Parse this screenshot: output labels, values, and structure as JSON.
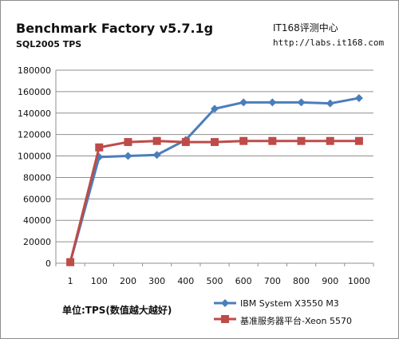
{
  "chart_data": {
    "type": "line",
    "title": "Benchmark Factory v5.7.1g",
    "subtitle": "SQL2005 TPS",
    "source_name": "IT168评测中心",
    "source_url": "http://labs.it168.com",
    "unit_label": "单位:TPS(数值越大越好)",
    "categories": [
      "1",
      "100",
      "200",
      "300",
      "400",
      "500",
      "600",
      "700",
      "800",
      "900",
      "1000"
    ],
    "ylim": [
      0,
      180000
    ],
    "yticks": [
      0,
      20000,
      40000,
      60000,
      80000,
      100000,
      120000,
      140000,
      160000,
      180000
    ],
    "grid": true,
    "legend_position": "bottom-right",
    "series": [
      {
        "name": "IBM System X3550 M3",
        "color": "#4a7ebb",
        "marker": "diamond",
        "values": [
          1000,
          99000,
          100000,
          101000,
          115000,
          144000,
          150000,
          150000,
          150000,
          149000,
          154000
        ]
      },
      {
        "name": "基准服务器平台-Xeon 5570",
        "color": "#be4b48",
        "marker": "square",
        "values": [
          1000,
          108000,
          113000,
          114000,
          113000,
          113000,
          114000,
          114000,
          114000,
          114000,
          114000
        ]
      }
    ]
  }
}
